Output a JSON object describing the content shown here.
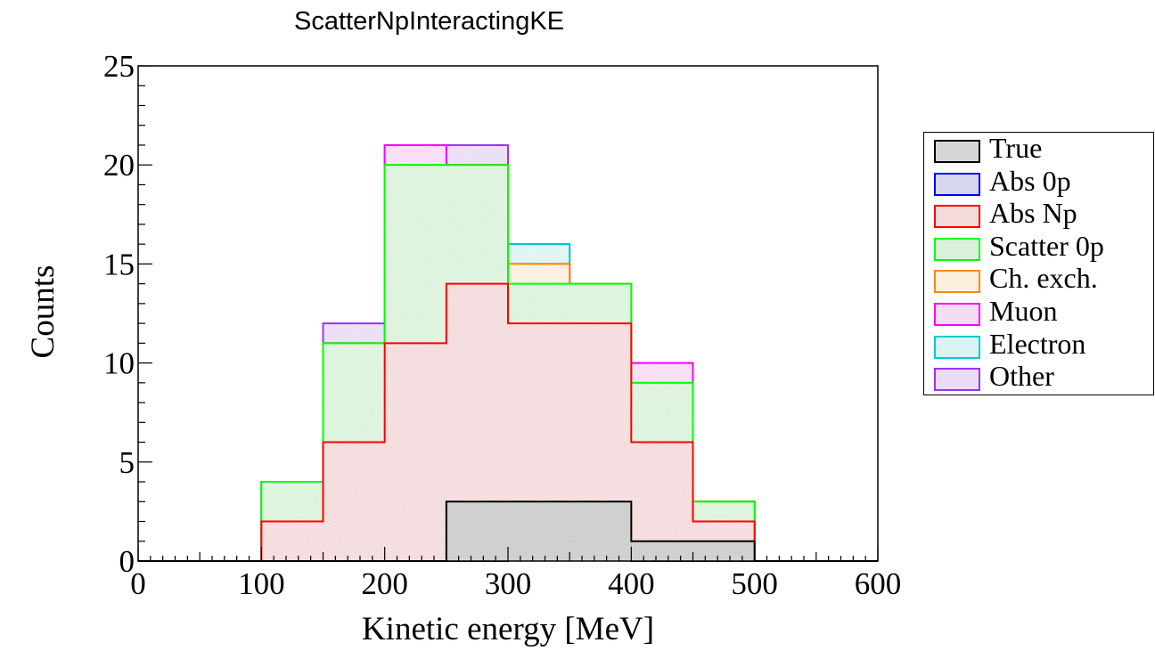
{
  "chart_data": {
    "type": "bar",
    "title": "ScatterNpInteractingKE",
    "xlabel": "Kinetic energy [MeV]",
    "ylabel": "Counts",
    "xlim": [
      0,
      600
    ],
    "ylim": [
      0,
      25
    ],
    "xticks": [
      "0",
      "100",
      "200",
      "300",
      "400",
      "500",
      "600"
    ],
    "yticks": [
      "0",
      "5",
      "10",
      "15",
      "20",
      "25"
    ],
    "bin_edges": [
      0,
      50,
      100,
      150,
      200,
      250,
      300,
      350,
      400,
      450,
      500,
      550,
      600
    ],
    "stacked": true,
    "legend_position": "right",
    "series": [
      {
        "name": "Abs 0p",
        "color": "#0000ff",
        "fill": "#ccccf0",
        "values": [
          0,
          0,
          0,
          0,
          0,
          0,
          1,
          1,
          0,
          0,
          0,
          0
        ]
      },
      {
        "name": "Abs Np",
        "color": "#ff0000",
        "fill": "#f4dada",
        "values": [
          0,
          0,
          2,
          6,
          11,
          14,
          11,
          11,
          6,
          2,
          0,
          0
        ]
      },
      {
        "name": "Scatter 0p",
        "color": "#00ff00",
        "fill": "#daf2da",
        "values": [
          0,
          0,
          2,
          5,
          9,
          6,
          2,
          2,
          3,
          1,
          0,
          0
        ]
      },
      {
        "name": "Ch. exch.",
        "color": "#ff8800",
        "fill": "#fbeedd",
        "values": [
          0,
          0,
          0,
          0,
          0,
          0,
          1,
          0,
          0,
          0,
          0,
          0
        ]
      },
      {
        "name": "Muon",
        "color": "#ff00ff",
        "fill": "#f5dcf5",
        "values": [
          0,
          0,
          0,
          0,
          1,
          0,
          0,
          0,
          1,
          0,
          0,
          0
        ]
      },
      {
        "name": "Electron",
        "color": "#00cccc",
        "fill": "#dcf3f3",
        "values": [
          0,
          0,
          0,
          0,
          0,
          0,
          1,
          0,
          0,
          0,
          0,
          0
        ]
      },
      {
        "name": "Other",
        "color": "#9933ff",
        "fill": "#e9dcf7",
        "values": [
          0,
          0,
          0,
          1,
          0,
          1,
          0,
          0,
          0,
          0,
          0,
          0
        ]
      }
    ],
    "true_series": {
      "name": "True",
      "color": "#000000",
      "fill": "#d0d0d0",
      "values": [
        0,
        0,
        0,
        0,
        0,
        3,
        3,
        3,
        1,
        1,
        0,
        0
      ]
    },
    "legend": [
      {
        "name": "True",
        "color": "#000000",
        "fill": "#d6d6d6"
      },
      {
        "name": "Abs 0p",
        "color": "#0000ff",
        "fill": "#d6d6ee"
      },
      {
        "name": "Abs Np",
        "color": "#ff0000",
        "fill": "#f4dada"
      },
      {
        "name": "Scatter 0p",
        "color": "#00ff00",
        "fill": "#daf2da"
      },
      {
        "name": "Ch. exch.",
        "color": "#ff8800",
        "fill": "#fbeedd"
      },
      {
        "name": "Muon",
        "color": "#ff00ff",
        "fill": "#f5dcf5"
      },
      {
        "name": "Electron",
        "color": "#00cccc",
        "fill": "#dcf3f3"
      },
      {
        "name": "Other",
        "color": "#9933ff",
        "fill": "#e9dcf7"
      }
    ]
  }
}
